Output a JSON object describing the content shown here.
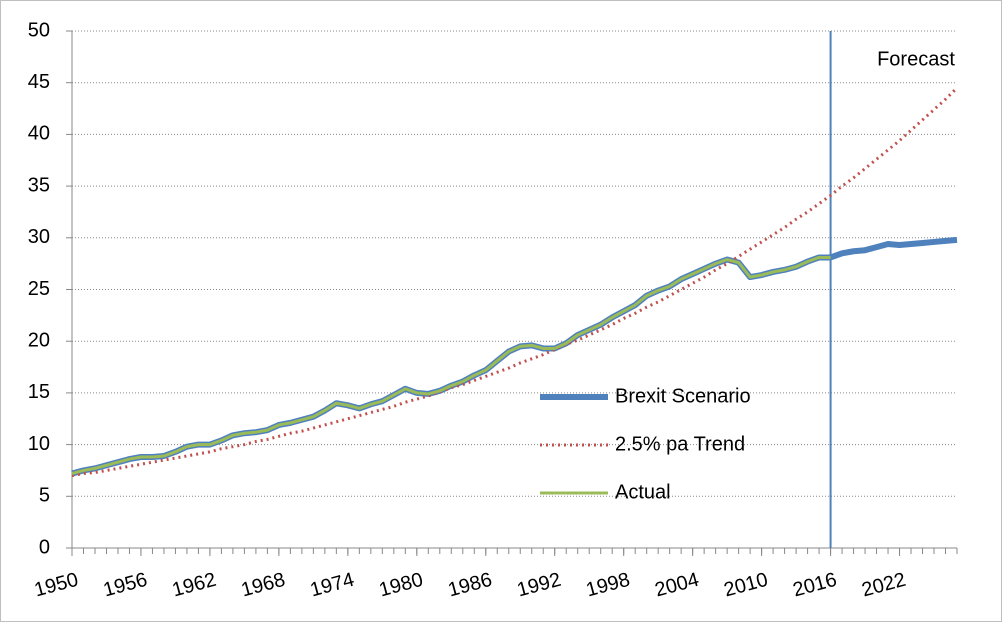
{
  "chart_data": {
    "type": "line",
    "x": [
      1950,
      1951,
      1952,
      1953,
      1954,
      1955,
      1956,
      1957,
      1958,
      1959,
      1960,
      1961,
      1962,
      1963,
      1964,
      1965,
      1966,
      1967,
      1968,
      1969,
      1970,
      1971,
      1972,
      1973,
      1974,
      1975,
      1976,
      1977,
      1978,
      1979,
      1980,
      1981,
      1982,
      1983,
      1984,
      1985,
      1986,
      1987,
      1988,
      1989,
      1990,
      1991,
      1992,
      1993,
      1994,
      1995,
      1996,
      1997,
      1998,
      1999,
      2000,
      2001,
      2002,
      2003,
      2004,
      2005,
      2006,
      2007,
      2008,
      2009,
      2010,
      2011,
      2012,
      2013,
      2014,
      2015,
      2016,
      2017,
      2018,
      2019,
      2020,
      2021,
      2022,
      2023,
      2024,
      2025,
      2026,
      2027
    ],
    "series": [
      {
        "name": "Brexit Scenario",
        "color": "#4f81bd",
        "width": 6,
        "dash": "none",
        "values": [
          7.2,
          7.5,
          7.7,
          8.0,
          8.3,
          8.6,
          8.8,
          8.8,
          8.9,
          9.3,
          9.8,
          10.0,
          10.0,
          10.4,
          10.9,
          11.1,
          11.2,
          11.4,
          11.9,
          12.1,
          12.4,
          12.7,
          13.3,
          14.0,
          13.8,
          13.5,
          13.9,
          14.2,
          14.8,
          15.4,
          15.0,
          14.9,
          15.2,
          15.7,
          16.1,
          16.7,
          17.2,
          18.1,
          19.0,
          19.5,
          19.6,
          19.3,
          19.3,
          19.8,
          20.6,
          21.1,
          21.6,
          22.3,
          22.9,
          23.5,
          24.4,
          24.9,
          25.3,
          26.0,
          26.5,
          27.0,
          27.5,
          27.9,
          27.6,
          26.2,
          26.4,
          26.7,
          26.9,
          27.2,
          27.7,
          28.1,
          28.1,
          28.5,
          28.7,
          28.8,
          29.1,
          29.4,
          29.3,
          29.4,
          29.5,
          29.6,
          29.7,
          29.8
        ]
      },
      {
        "name": "2.5% pa Trend",
        "color": "#c0504d",
        "width": 3,
        "dash": "2 4",
        "values": [
          7.0,
          7.2,
          7.3,
          7.5,
          7.7,
          7.9,
          8.1,
          8.3,
          8.5,
          8.7,
          8.9,
          9.1,
          9.3,
          9.6,
          9.8,
          10.0,
          10.3,
          10.5,
          10.8,
          11.1,
          11.3,
          11.6,
          11.9,
          12.2,
          12.5,
          12.8,
          13.1,
          13.4,
          13.7,
          14.1,
          14.4,
          14.7,
          15.1,
          15.5,
          15.8,
          16.2,
          16.6,
          17.0,
          17.4,
          17.9,
          18.3,
          18.7,
          19.2,
          19.7,
          20.1,
          20.6,
          21.1,
          21.6,
          22.2,
          22.7,
          23.3,
          23.8,
          24.4,
          25.0,
          25.6,
          26.2,
          26.9,
          27.5,
          28.2,
          28.9,
          29.6,
          30.3,
          31.0,
          31.8,
          32.5,
          33.3,
          34.1,
          35.0,
          35.8,
          36.7,
          37.6,
          38.5,
          39.4,
          40.4,
          41.4,
          42.4,
          43.4,
          44.5
        ]
      },
      {
        "name": "Actual",
        "color": "#9bbb59",
        "width": 3,
        "dash": "none",
        "values": [
          7.2,
          7.5,
          7.7,
          8.0,
          8.3,
          8.6,
          8.8,
          8.8,
          8.9,
          9.3,
          9.8,
          10.0,
          10.0,
          10.4,
          10.9,
          11.1,
          11.2,
          11.4,
          11.9,
          12.1,
          12.4,
          12.7,
          13.3,
          14.0,
          13.8,
          13.5,
          13.9,
          14.2,
          14.8,
          15.4,
          15.0,
          14.9,
          15.2,
          15.7,
          16.1,
          16.7,
          17.2,
          18.1,
          19.0,
          19.5,
          19.6,
          19.3,
          19.3,
          19.8,
          20.6,
          21.1,
          21.6,
          22.3,
          22.9,
          23.5,
          24.4,
          24.9,
          25.3,
          26.0,
          26.5,
          27.0,
          27.5,
          27.9,
          27.6,
          26.2,
          26.4,
          26.7,
          26.9,
          27.2,
          27.7,
          28.1,
          28.1,
          null,
          null,
          null,
          null,
          null,
          null,
          null,
          null,
          null,
          null,
          null
        ]
      }
    ],
    "xlim": [
      1950,
      2027
    ],
    "xticks": [
      1950,
      1956,
      1962,
      1968,
      1974,
      1980,
      1986,
      1992,
      1998,
      2004,
      2010,
      2016,
      2022
    ],
    "ylim": [
      0,
      50
    ],
    "yticks": [
      0,
      5,
      10,
      15,
      20,
      25,
      30,
      35,
      40,
      45,
      50
    ],
    "grid": true,
    "forecast_line": 2016,
    "forecast_color": "#4f81bd",
    "annotation": "Forecast"
  }
}
